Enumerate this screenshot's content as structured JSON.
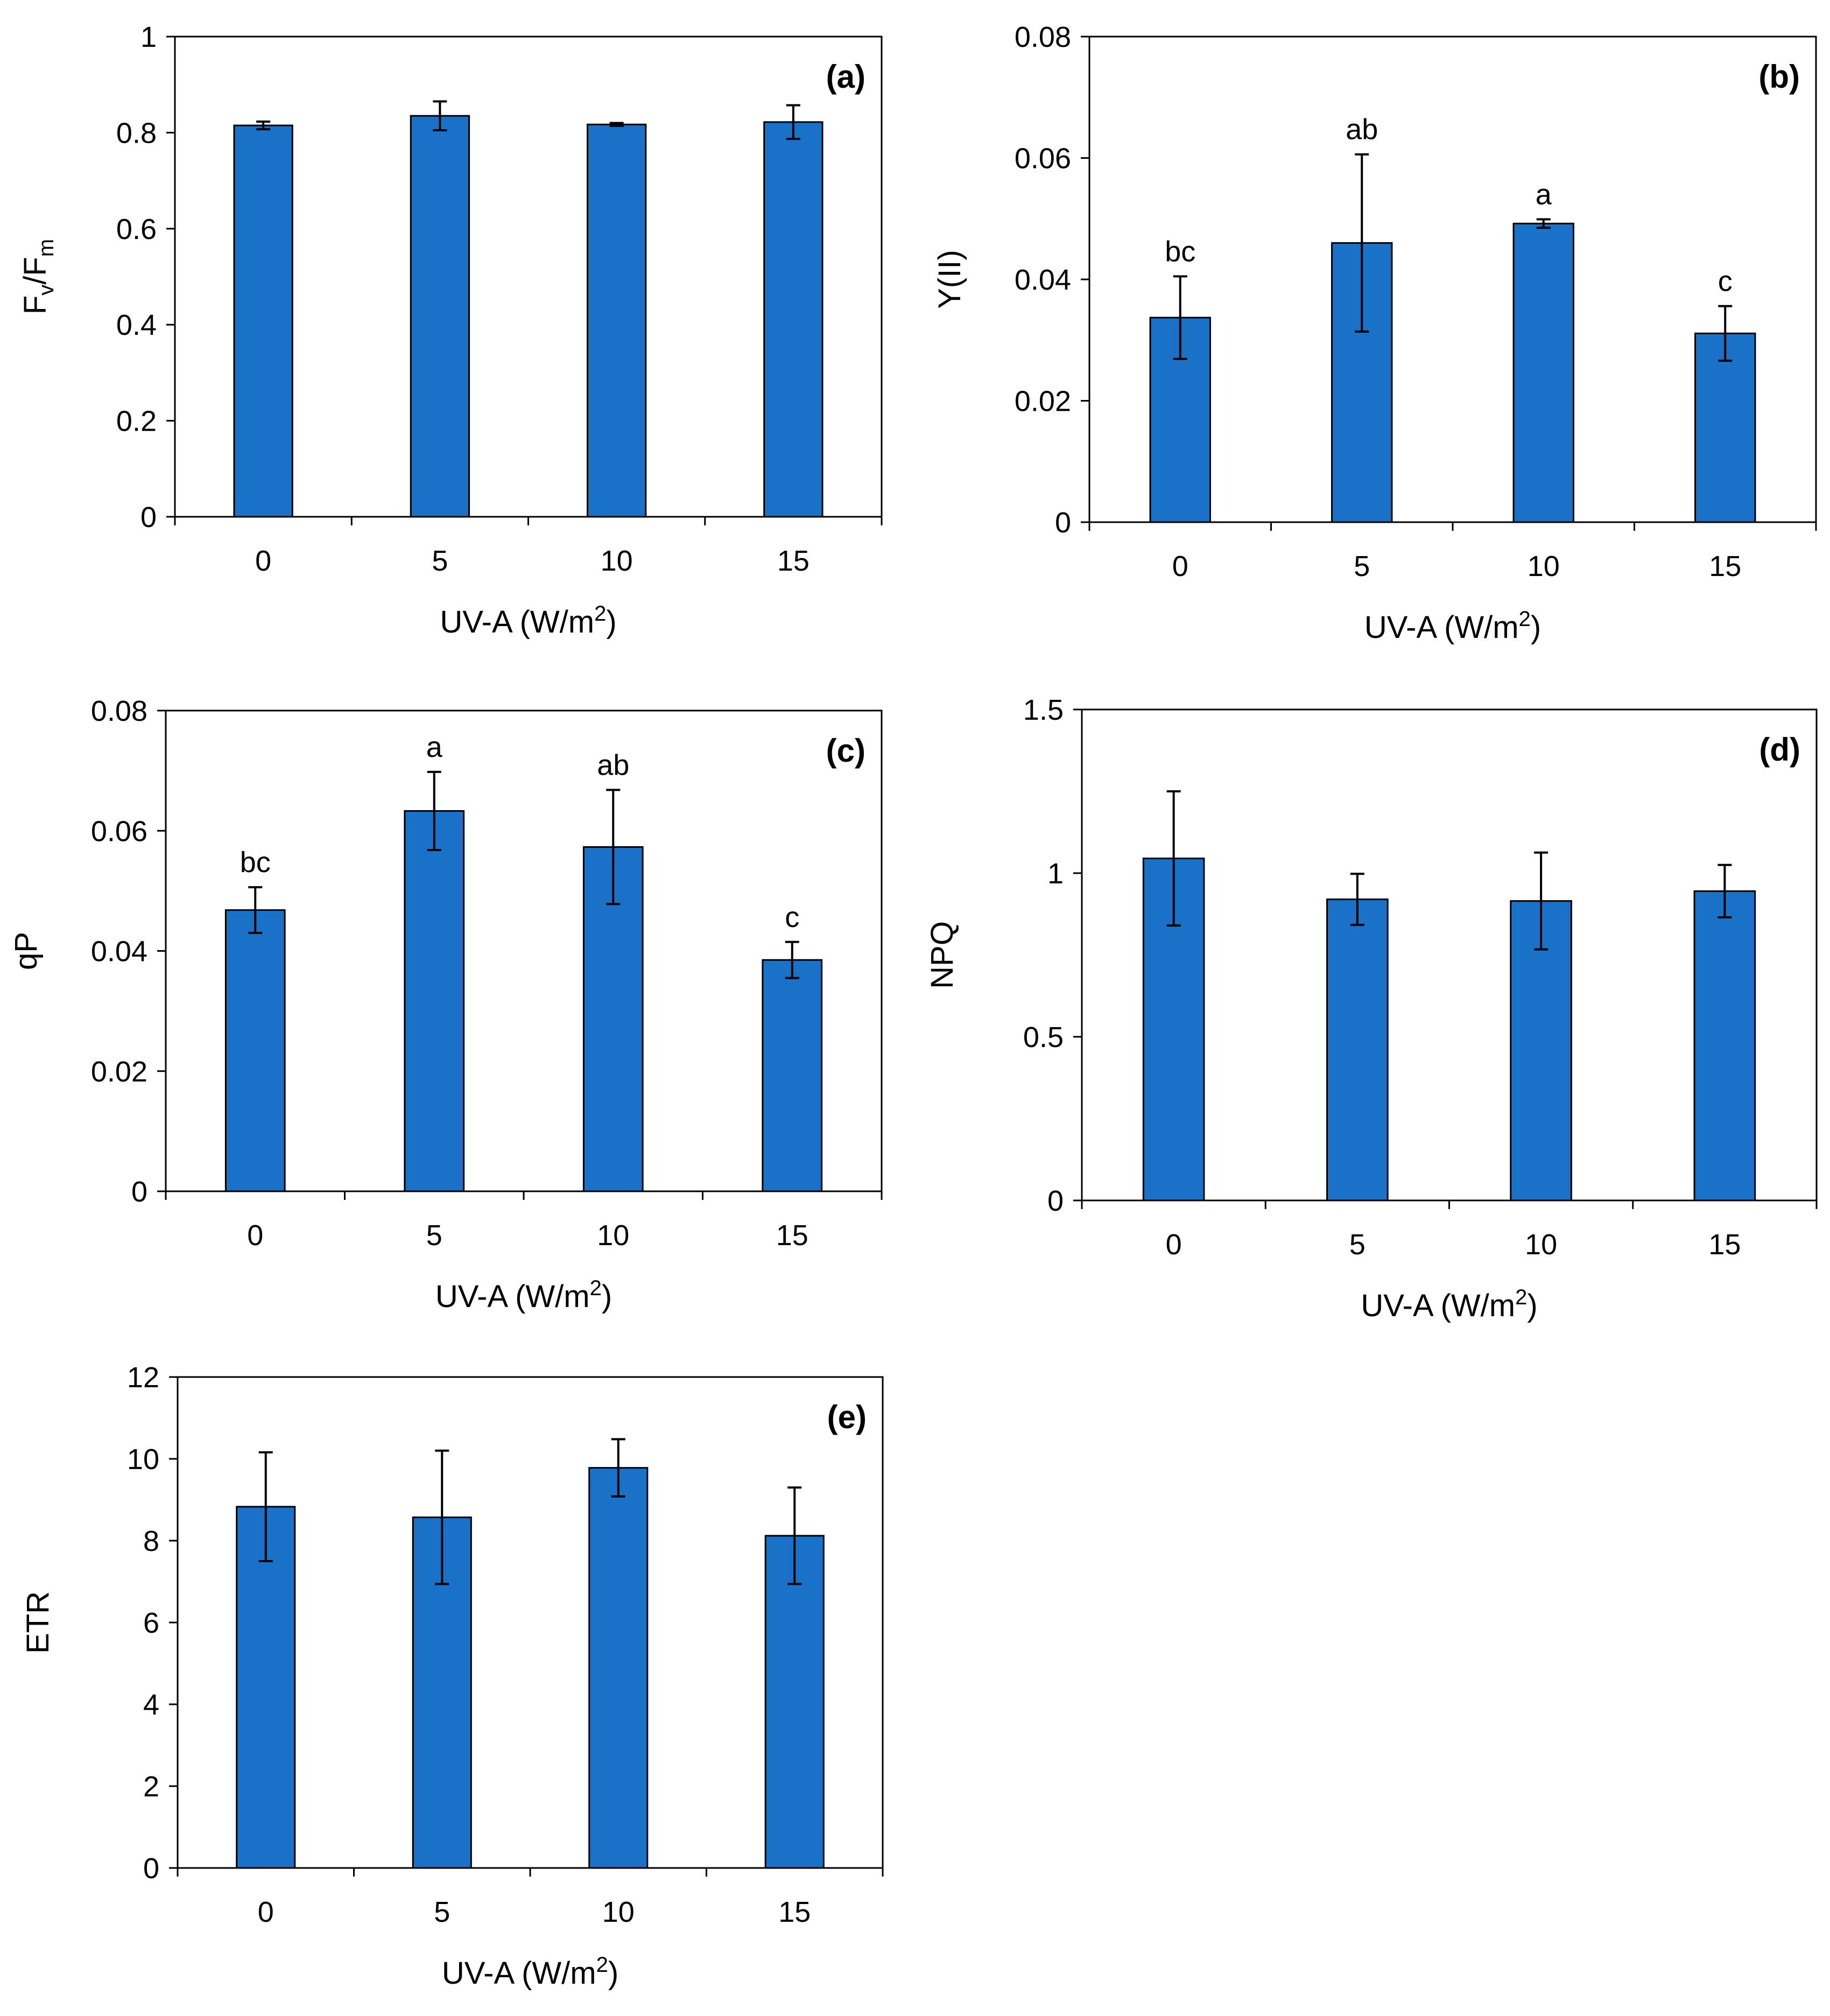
{
  "chart_data": [
    {
      "type": "bar",
      "panel": "(a)",
      "categories": [
        "0",
        "5",
        "10",
        "15"
      ],
      "values": [
        0.815,
        0.835,
        0.817,
        0.822
      ],
      "errors": [
        0.008,
        0.03,
        0.003,
        0.035
      ],
      "sig_letters": [],
      "ylim": [
        0,
        1
      ],
      "yticks": [
        "0",
        "0.2",
        "0.4",
        "0.6",
        "0.8",
        "1"
      ],
      "ylabel_main": "F",
      "ylabel_sub1": "v",
      "ylabel_mid": "/F",
      "ylabel_sub2": "m",
      "xlabel_main": "UV-A  (W/m",
      "xlabel_sup": "2",
      "xlabel_end": ")",
      "color": "#1a72c8"
    },
    {
      "type": "bar",
      "panel": "(b)",
      "categories": [
        "0",
        "5",
        "10",
        "15"
      ],
      "values": [
        0.0337,
        0.046,
        0.0492,
        0.0311
      ],
      "errors": [
        0.0068,
        0.0146,
        0.0007,
        0.0045
      ],
      "sig_letters": [
        "bc",
        "ab",
        "a",
        "c"
      ],
      "ylim": [
        0,
        0.08
      ],
      "yticks": [
        "0",
        "0.02",
        "0.04",
        "0.06",
        "0.08"
      ],
      "ylabel": "Y(II)",
      "xlabel_main": "UV-A  (W/m",
      "xlabel_sup": "2",
      "xlabel_end": ")",
      "color": "#1a72c8"
    },
    {
      "type": "bar",
      "panel": "(c)",
      "categories": [
        "0",
        "5",
        "10",
        "15"
      ],
      "values": [
        0.0468,
        0.0633,
        0.0573,
        0.0385
      ],
      "errors": [
        0.0038,
        0.0065,
        0.0095,
        0.003
      ],
      "sig_letters": [
        "bc",
        "a",
        "ab",
        "c"
      ],
      "ylim": [
        0,
        0.08
      ],
      "yticks": [
        "0",
        "0.02",
        "0.04",
        "0.06",
        "0.08"
      ],
      "ylabel": "qP",
      "xlabel_main": "UV-A  (W/m",
      "xlabel_sup": "2",
      "xlabel_end": ")",
      "color": "#1a72c8"
    },
    {
      "type": "bar",
      "panel": "(d)",
      "categories": [
        "0",
        "5",
        "10",
        "15"
      ],
      "values": [
        1.045,
        0.92,
        0.915,
        0.945
      ],
      "errors": [
        0.205,
        0.078,
        0.148,
        0.08
      ],
      "sig_letters": [],
      "ylim": [
        0,
        1.5
      ],
      "yticks": [
        "0",
        "0.5",
        "1",
        "1.5"
      ],
      "ylabel": "NPQ",
      "xlabel_main": "UV-A  (W/m",
      "xlabel_sup": "2",
      "xlabel_end": ")",
      "color": "#1a72c8"
    },
    {
      "type": "bar",
      "panel": "(e)",
      "categories": [
        "0",
        "5",
        "10",
        "15"
      ],
      "values": [
        8.83,
        8.57,
        9.78,
        8.12
      ],
      "errors": [
        1.33,
        1.63,
        0.7,
        1.18
      ],
      "sig_letters": [],
      "ylim": [
        0,
        12
      ],
      "yticks": [
        "0",
        "2",
        "4",
        "6",
        "8",
        "10",
        "12"
      ],
      "ylabel": "ETR",
      "xlabel_main": "UV-A  (W/m",
      "xlabel_sup": "2",
      "xlabel_end": ")",
      "color": "#1a72c8"
    }
  ]
}
